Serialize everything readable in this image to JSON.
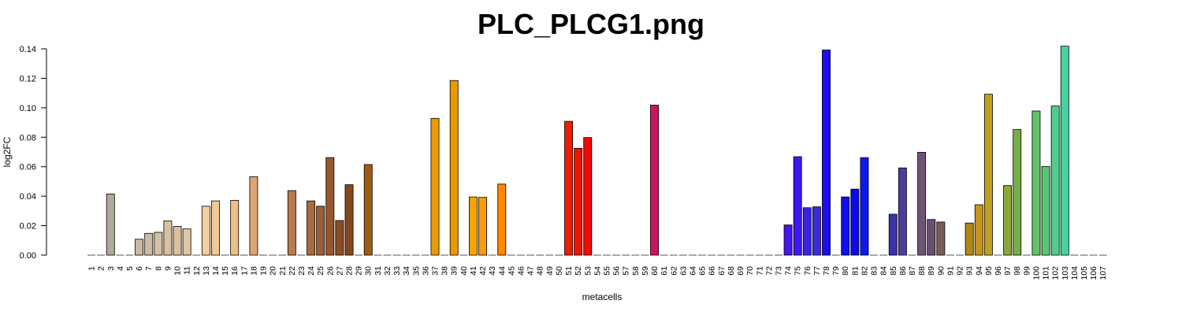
{
  "chart_data": {
    "type": "bar",
    "title": "PLC_PLCG1.png",
    "xlabel": "metacells",
    "ylabel": "log2FC",
    "ylim": [
      0,
      0.14
    ],
    "yticks": [
      "0.00",
      "0.02",
      "0.04",
      "0.06",
      "0.08",
      "0.10",
      "0.12",
      "0.14"
    ],
    "categories": [
      "1",
      "2",
      "3",
      "4",
      "5",
      "6",
      "7",
      "8",
      "9",
      "10",
      "11",
      "12",
      "13",
      "14",
      "15",
      "16",
      "17",
      "18",
      "19",
      "20",
      "21",
      "22",
      "23",
      "24",
      "25",
      "26",
      "27",
      "28",
      "29",
      "30",
      "31",
      "32",
      "33",
      "34",
      "35",
      "36",
      "37",
      "38",
      "39",
      "40",
      "41",
      "42",
      "43",
      "44",
      "45",
      "46",
      "47",
      "48",
      "49",
      "50",
      "51",
      "52",
      "53",
      "54",
      "55",
      "56",
      "57",
      "58",
      "59",
      "60",
      "61",
      "62",
      "63",
      "64",
      "65",
      "66",
      "67",
      "68",
      "69",
      "70",
      "71",
      "72",
      "73",
      "74",
      "75",
      "76",
      "77",
      "78",
      "79",
      "80",
      "81",
      "82",
      "83",
      "84",
      "85",
      "86",
      "87",
      "88",
      "89",
      "90",
      "91",
      "92",
      "93",
      "94",
      "95",
      "96",
      "97",
      "98",
      "99",
      "100",
      "101",
      "102",
      "103",
      "104",
      "105",
      "106",
      "107"
    ],
    "values": [
      0,
      0,
      0.0415,
      0,
      0,
      0.0108,
      0.0148,
      0.0155,
      0.0232,
      0.0195,
      0.0178,
      0,
      0.0332,
      0.0368,
      0,
      0.0372,
      0,
      0.0532,
      0,
      0,
      0,
      0.0438,
      0,
      0.0368,
      0.0332,
      0.0662,
      0.0235,
      0.0478,
      0,
      0.0615,
      0,
      0,
      0,
      0,
      0,
      0,
      0.0928,
      0,
      0.1185,
      0,
      0.0395,
      0.0392,
      0,
      0.0482,
      0,
      0,
      0,
      0,
      0,
      0,
      0.0908,
      0.0725,
      0.0798,
      0,
      0,
      0,
      0,
      0,
      0,
      0.1018,
      0,
      0,
      0,
      0,
      0,
      0,
      0,
      0,
      0,
      0,
      0,
      0,
      0,
      0.0205,
      0.0668,
      0.0322,
      0.0328,
      0.1392,
      0,
      0.0395,
      0.0448,
      0.0662,
      0,
      0,
      0.0278,
      0.0592,
      0,
      0.0698,
      0.0242,
      0.0225,
      0,
      0,
      0.0218,
      0.0342,
      0.1092,
      0,
      0.0472,
      0.0852,
      0,
      0.0978,
      0.0602,
      0.1012,
      0.1418,
      0,
      0,
      0,
      0
    ],
    "colors": [
      "#d2c4ac",
      "#b8a898",
      "#b0a898",
      "#d8c8b0",
      "#d0c0a8",
      "#c8b8a6",
      "#cbbba5",
      "#d4c0a4",
      "#d8c0a0",
      "#ddc0a0",
      "#e0c6a4",
      "#f2d0a6",
      "#f4ce9e",
      "#f2c894",
      "#f0c690",
      "#eebf88",
      "#e8b47c",
      "#dca472",
      "#d09866",
      "#c88c5e",
      "#c08056",
      "#b87a50",
      "#b07046",
      "#a86a3c",
      "#9c5e36",
      "#985630",
      "#8c4c26",
      "#86461c",
      "#8a4c18",
      "#9c5c14",
      "#b87010",
      "#c98008",
      "#d48a04",
      "#d88c00",
      "#e08e00",
      "#e89600",
      "#ec9a00",
      "#f09c00",
      "#ec9800",
      "#f4a000",
      "#f8a400",
      "#fa9c00",
      "#fc9200",
      "#ff8800",
      "#ff7000",
      "#ff5800",
      "#ff4000",
      "#f82c00",
      "#f21a00",
      "#ee1000",
      "#ee1c00",
      "#ee1400",
      "#ee0a00",
      "#e8062c",
      "#de0a48",
      "#d80c58",
      "#d40e5e",
      "#d0105e",
      "#cc125c",
      "#cc1262",
      "#a81c80",
      "#9020a0",
      "#7822b8",
      "#6a20cc",
      "#5c1ee0",
      "#4c18ee",
      "#4014f0",
      "#3612f2",
      "#2c10f4",
      "#2410f4",
      "#1e0ef2",
      "#1a0cf0",
      "#3a1ae8",
      "#4a14ee",
      "#3e18f0",
      "#3a22e4",
      "#3c2ad8",
      "#1c0ef0",
      "#2a16e0",
      "#0e0ef0",
      "#0a0aee",
      "#0e1aec",
      "#1428d0",
      "#3030b0",
      "#3a32a8",
      "#503c9c",
      "#5c4490",
      "#705478",
      "#6a5070",
      "#7c5c54",
      "#7c5438",
      "#8a6428",
      "#b08818",
      "#c89418",
      "#c0a024",
      "#a8a430",
      "#8aa838",
      "#78ac48",
      "#6cb452",
      "#64c06a",
      "#5cc478",
      "#52cc8c",
      "#44d49e",
      "#3ed8aa",
      "#3adcb4",
      "#3adeb8",
      "#36e0bc"
    ]
  }
}
